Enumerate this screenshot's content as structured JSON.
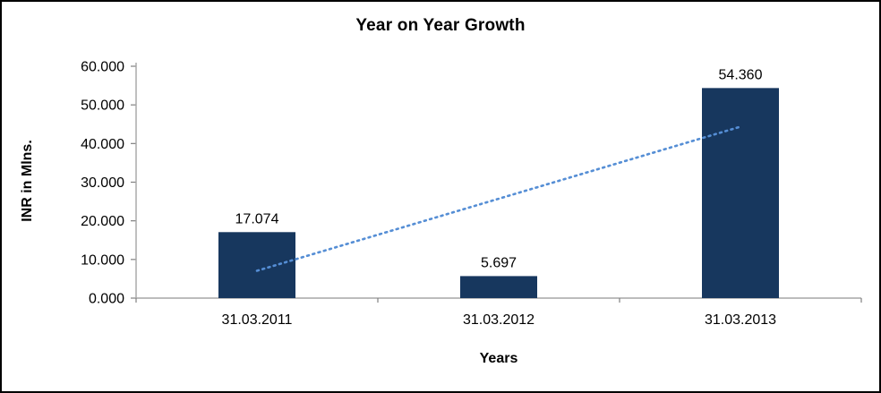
{
  "figure": {
    "border_color": "#000000",
    "background": "#FFFFFF"
  },
  "chart_data": {
    "type": "bar",
    "title": "Year on Year Growth",
    "xlabel": "Years",
    "ylabel": "INR in Mlns.",
    "categories": [
      "31.03.2011",
      "31.03.2012",
      "31.03.2013"
    ],
    "values": [
      17.074,
      5.697,
      54.36
    ],
    "data_labels": [
      "17.074",
      "5.697",
      "54.360"
    ],
    "ylim": [
      0,
      60
    ],
    "ytick_step": 10,
    "ytick_labels": [
      "0.000",
      "10.000",
      "20.000",
      "30.000",
      "40.000",
      "50.000",
      "60.000"
    ],
    "grid": false,
    "legend": "none",
    "bar_color": "#17375E",
    "axis_color": "#A6A6A6",
    "tick_color": "#808080",
    "trendline": {
      "type": "linear",
      "style": "dotted",
      "color": "#558ED5",
      "endpoint_values": [
        7.07,
        44.36
      ]
    }
  }
}
